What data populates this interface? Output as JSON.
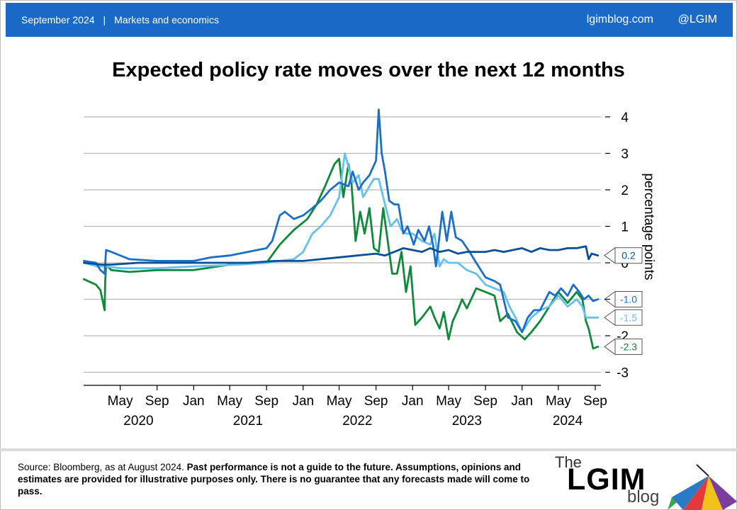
{
  "header": {
    "date": "September 2024",
    "separator": "|",
    "section": "Markets and economics",
    "site": "lgimblog.com",
    "handle": "@LGIM",
    "color": "#1b69c7"
  },
  "footer": {
    "source": "Source: Bloomberg, as at August 2024.",
    "disclaimer": "Past performance is not a guide to the future. Assumptions, opinions and estimates are provided for illustrative purposes only.  There is no guarantee that any forecasts made will come to pass.",
    "logo_the": "The",
    "logo_lgim": "LGIM",
    "logo_blog": "blog"
  },
  "chart_data": {
    "type": "line",
    "title": "Expected policy rate moves over the next 12 months",
    "ylabel": "percentage points",
    "ylim": [
      -3.3,
      4.3
    ],
    "yticks": [
      4,
      3,
      2,
      1,
      0,
      -1,
      -2,
      -3
    ],
    "ytick_labels": [
      "4",
      "3",
      "2",
      "1",
      "0",
      "-1",
      "-2",
      "-3"
    ],
    "xlim": [
      "2019-12-31",
      "2024-09-20"
    ],
    "x_ticks": [
      {
        "date": "2020-05-01",
        "label": "May"
      },
      {
        "date": "2020-09-01",
        "label": "Sep"
      },
      {
        "date": "2021-01-01",
        "label": "Jan"
      },
      {
        "date": "2021-05-01",
        "label": "May"
      },
      {
        "date": "2021-09-01",
        "label": "Sep"
      },
      {
        "date": "2022-01-01",
        "label": "Jan"
      },
      {
        "date": "2022-05-01",
        "label": "May"
      },
      {
        "date": "2022-09-01",
        "label": "Sep"
      },
      {
        "date": "2023-01-01",
        "label": "Jan"
      },
      {
        "date": "2023-05-01",
        "label": "May"
      },
      {
        "date": "2023-09-01",
        "label": "Sep"
      },
      {
        "date": "2024-01-01",
        "label": "Jan"
      },
      {
        "date": "2024-05-01",
        "label": "May"
      },
      {
        "date": "2024-09-01",
        "label": "Sep"
      }
    ],
    "x_years": [
      {
        "date": "2020-07-01",
        "label": "2020"
      },
      {
        "date": "2021-07-01",
        "label": "2021"
      },
      {
        "date": "2022-07-01",
        "label": "2022"
      },
      {
        "date": "2023-07-01",
        "label": "2023"
      },
      {
        "date": "2024-06-01",
        "label": "2024"
      }
    ],
    "grid": true,
    "series": [
      {
        "color": "#0e8a3a",
        "end_label": "-2.3",
        "x": [
          "2020-01-01",
          "2020-02-10",
          "2020-02-25",
          "2020-03-10",
          "2020-03-12",
          "2020-03-15",
          "2020-04-01",
          "2020-06-01",
          "2020-09-01",
          "2021-01-01",
          "2021-05-01",
          "2021-09-01",
          "2021-10-15",
          "2021-12-01",
          "2022-01-15",
          "2022-02-15",
          "2022-03-15",
          "2022-04-15",
          "2022-05-01",
          "2022-05-15",
          "2022-06-01",
          "2022-06-10",
          "2022-06-25",
          "2022-07-10",
          "2022-07-25",
          "2022-08-10",
          "2022-08-25",
          "2022-09-10",
          "2022-09-25",
          "2022-10-10",
          "2022-10-25",
          "2022-11-10",
          "2022-11-25",
          "2022-12-10",
          "2022-12-25",
          "2023-01-10",
          "2023-02-01",
          "2023-03-01",
          "2023-03-15",
          "2023-04-01",
          "2023-04-15",
          "2023-05-01",
          "2023-05-15",
          "2023-06-01",
          "2023-06-15",
          "2023-07-01",
          "2023-08-01",
          "2023-09-01",
          "2023-10-01",
          "2023-10-20",
          "2023-11-15",
          "2023-12-15",
          "2024-01-10",
          "2024-02-01",
          "2024-03-01",
          "2024-04-01",
          "2024-05-01",
          "2024-06-01",
          "2024-07-01",
          "2024-07-20",
          "2024-08-01",
          "2024-08-10",
          "2024-08-25",
          "2024-09-10"
        ],
        "y": [
          -0.45,
          -0.6,
          -0.75,
          -1.3,
          -0.5,
          -0.05,
          -0.2,
          -0.25,
          -0.2,
          -0.2,
          -0.05,
          0.0,
          0.5,
          0.9,
          1.2,
          1.6,
          2.1,
          2.7,
          2.85,
          1.8,
          2.7,
          2.3,
          0.6,
          1.4,
          0.8,
          1.5,
          0.4,
          0.3,
          1.5,
          0.6,
          -0.3,
          -0.3,
          0.3,
          -0.8,
          -0.1,
          -1.7,
          -1.5,
          -1.2,
          -1.5,
          -1.8,
          -1.35,
          -2.1,
          -1.6,
          -1.3,
          -1.0,
          -1.25,
          -0.7,
          -0.8,
          -0.9,
          -1.6,
          -1.4,
          -1.9,
          -2.1,
          -1.9,
          -1.6,
          -1.2,
          -0.8,
          -1.1,
          -0.8,
          -1.0,
          -1.6,
          -1.8,
          -2.35,
          -2.3
        ]
      },
      {
        "color": "#66c1f0",
        "end_label": "-1.5",
        "x": [
          "2020-01-01",
          "2020-02-15",
          "2020-03-15",
          "2020-05-01",
          "2020-09-01",
          "2021-01-01",
          "2021-06-01",
          "2021-09-01",
          "2021-10-15",
          "2021-12-01",
          "2022-01-01",
          "2022-02-01",
          "2022-03-01",
          "2022-04-01",
          "2022-05-01",
          "2022-05-20",
          "2022-06-15",
          "2022-07-05",
          "2022-07-20",
          "2022-08-10",
          "2022-08-25",
          "2022-09-10",
          "2022-10-01",
          "2022-10-20",
          "2022-11-10",
          "2022-11-25",
          "2022-12-10",
          "2023-01-01",
          "2023-02-01",
          "2023-03-01",
          "2023-03-15",
          "2023-04-01",
          "2023-04-15",
          "2023-05-01",
          "2023-06-01",
          "2023-07-01",
          "2023-08-01",
          "2023-09-01",
          "2023-10-01",
          "2023-11-01",
          "2023-11-20",
          "2023-12-10",
          "2024-01-01",
          "2024-02-01",
          "2024-03-01",
          "2024-04-01",
          "2024-05-01",
          "2024-06-01",
          "2024-07-01",
          "2024-07-20",
          "2024-08-01",
          "2024-08-20",
          "2024-09-10"
        ],
        "y": [
          0.0,
          -0.1,
          -0.1,
          -0.15,
          -0.15,
          -0.1,
          -0.05,
          0.0,
          0.05,
          0.1,
          0.3,
          0.8,
          1.0,
          1.3,
          1.8,
          3.0,
          2.2,
          2.4,
          1.8,
          2.1,
          2.3,
          2.3,
          1.6,
          1.0,
          1.2,
          0.9,
          0.8,
          0.8,
          0.6,
          0.5,
          0.8,
          -0.1,
          0.1,
          0.0,
          0.0,
          -0.2,
          -0.3,
          -0.6,
          -0.7,
          -0.8,
          -1.2,
          -1.5,
          -1.9,
          -1.5,
          -1.3,
          -1.2,
          -0.9,
          -1.2,
          -1.0,
          -1.2,
          -1.5,
          -1.5,
          -1.5
        ]
      },
      {
        "color": "#1a6fca",
        "end_label": "-1.0",
        "x": [
          "2020-01-01",
          "2020-02-10",
          "2020-02-25",
          "2020-03-10",
          "2020-03-15",
          "2020-04-01",
          "2020-06-01",
          "2020-09-01",
          "2021-01-01",
          "2021-03-01",
          "2021-05-01",
          "2021-07-01",
          "2021-09-01",
          "2021-09-20",
          "2021-10-15",
          "2021-11-01",
          "2021-12-01",
          "2022-01-01",
          "2022-02-01",
          "2022-03-01",
          "2022-04-01",
          "2022-05-01",
          "2022-06-01",
          "2022-06-15",
          "2022-07-05",
          "2022-07-20",
          "2022-08-10",
          "2022-09-01",
          "2022-09-10",
          "2022-09-20",
          "2022-10-01",
          "2022-10-15",
          "2022-11-01",
          "2022-11-15",
          "2022-12-01",
          "2022-12-15",
          "2023-01-05",
          "2023-01-20",
          "2023-02-10",
          "2023-02-25",
          "2023-03-10",
          "2023-03-20",
          "2023-04-10",
          "2023-04-25",
          "2023-05-10",
          "2023-05-25",
          "2023-06-15",
          "2023-07-10",
          "2023-08-01",
          "2023-09-01",
          "2023-10-01",
          "2023-10-20",
          "2023-11-15",
          "2023-12-10",
          "2024-01-01",
          "2024-01-20",
          "2024-02-10",
          "2024-03-01",
          "2024-04-01",
          "2024-04-20",
          "2024-05-10",
          "2024-06-01",
          "2024-06-20",
          "2024-07-10",
          "2024-07-25",
          "2024-08-10",
          "2024-08-25",
          "2024-09-10"
        ],
        "y": [
          0.05,
          0.0,
          -0.2,
          -0.3,
          0.35,
          0.3,
          0.1,
          0.05,
          0.05,
          0.15,
          0.2,
          0.3,
          0.4,
          0.6,
          1.3,
          1.4,
          1.2,
          1.3,
          1.5,
          1.7,
          2.0,
          2.2,
          2.1,
          2.5,
          2.0,
          2.2,
          2.4,
          2.8,
          4.2,
          3.0,
          2.5,
          1.7,
          1.6,
          1.6,
          0.8,
          1.0,
          0.5,
          0.9,
          0.6,
          1.0,
          0.5,
          -0.1,
          1.4,
          0.6,
          1.4,
          0.7,
          0.6,
          0.3,
          0.0,
          -0.4,
          -0.5,
          -0.6,
          -1.5,
          -1.6,
          -1.9,
          -1.5,
          -1.3,
          -1.3,
          -0.8,
          -0.9,
          -0.7,
          -0.9,
          -0.6,
          -0.8,
          -1.0,
          -0.9,
          -1.05,
          -1.0
        ]
      },
      {
        "color": "#0b4f94",
        "end_label": "0.2",
        "x": [
          "2020-01-01",
          "2020-03-01",
          "2020-04-01",
          "2020-07-01",
          "2020-10-01",
          "2021-01-01",
          "2021-04-01",
          "2021-07-01",
          "2021-10-01",
          "2021-12-01",
          "2022-01-01",
          "2022-03-01",
          "2022-05-01",
          "2022-07-01",
          "2022-09-01",
          "2022-10-01",
          "2022-11-01",
          "2022-12-01",
          "2023-01-01",
          "2023-02-01",
          "2023-03-01",
          "2023-04-01",
          "2023-05-01",
          "2023-06-01",
          "2023-07-01",
          "2023-09-01",
          "2023-10-01",
          "2023-11-01",
          "2023-12-01",
          "2024-01-01",
          "2024-02-01",
          "2024-03-01",
          "2024-04-01",
          "2024-05-01",
          "2024-06-01",
          "2024-07-01",
          "2024-08-01",
          "2024-08-10",
          "2024-08-20",
          "2024-09-10"
        ],
        "y": [
          0.0,
          -0.05,
          -0.05,
          0.0,
          0.0,
          0.0,
          0.0,
          0.0,
          0.05,
          0.05,
          0.05,
          0.1,
          0.15,
          0.2,
          0.25,
          0.2,
          0.3,
          0.4,
          0.35,
          0.3,
          0.4,
          0.3,
          0.35,
          0.25,
          0.3,
          0.3,
          0.35,
          0.3,
          0.35,
          0.4,
          0.3,
          0.4,
          0.35,
          0.35,
          0.4,
          0.4,
          0.45,
          0.1,
          0.25,
          0.2
        ]
      }
    ]
  }
}
